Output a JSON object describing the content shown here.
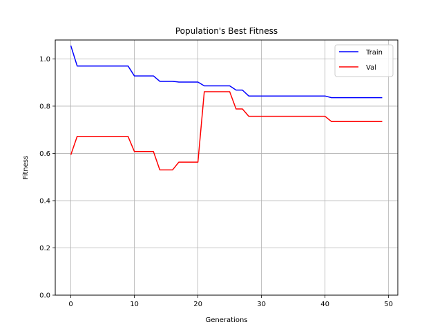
{
  "chart_data": {
    "type": "line",
    "title": "Population's Best Fitness",
    "xlabel": "Generations",
    "ylabel": "Fitness",
    "xlim": [
      -2.45,
      51.45
    ],
    "ylim": [
      0.0,
      1.08
    ],
    "xticks": [
      0,
      10,
      20,
      30,
      40,
      50
    ],
    "yticks": [
      0.0,
      0.2,
      0.4,
      0.6,
      0.8,
      1.0
    ],
    "xtick_labels": [
      "0",
      "10",
      "20",
      "30",
      "40",
      "50"
    ],
    "ytick_labels": [
      "0.0",
      "0.2",
      "0.4",
      "0.6",
      "0.8",
      "1.0"
    ],
    "grid": true,
    "legend_position": "top-right",
    "x": [
      0,
      1,
      2,
      3,
      4,
      5,
      6,
      7,
      8,
      9,
      10,
      11,
      12,
      13,
      14,
      15,
      16,
      17,
      18,
      19,
      20,
      21,
      22,
      23,
      24,
      25,
      26,
      27,
      28,
      29,
      30,
      31,
      32,
      33,
      34,
      35,
      36,
      37,
      38,
      39,
      40,
      41,
      42,
      43,
      44,
      45,
      46,
      47,
      48,
      49
    ],
    "series": [
      {
        "name": "Train",
        "color": "#0000ff",
        "values": [
          1.056,
          0.97,
          0.97,
          0.97,
          0.97,
          0.97,
          0.97,
          0.97,
          0.97,
          0.97,
          0.928,
          0.928,
          0.928,
          0.928,
          0.905,
          0.905,
          0.905,
          0.902,
          0.902,
          0.902,
          0.902,
          0.886,
          0.886,
          0.886,
          0.886,
          0.886,
          0.868,
          0.868,
          0.843,
          0.843,
          0.843,
          0.843,
          0.843,
          0.843,
          0.843,
          0.843,
          0.843,
          0.843,
          0.843,
          0.843,
          0.843,
          0.836,
          0.836,
          0.836,
          0.836,
          0.836,
          0.836,
          0.836,
          0.836,
          0.836
        ]
      },
      {
        "name": "Val",
        "color": "#ff0000",
        "values": [
          0.594,
          0.672,
          0.672,
          0.672,
          0.672,
          0.672,
          0.672,
          0.672,
          0.672,
          0.672,
          0.608,
          0.608,
          0.608,
          0.608,
          0.53,
          0.53,
          0.53,
          0.563,
          0.563,
          0.563,
          0.563,
          0.861,
          0.861,
          0.861,
          0.861,
          0.861,
          0.788,
          0.788,
          0.757,
          0.757,
          0.757,
          0.757,
          0.757,
          0.757,
          0.757,
          0.757,
          0.757,
          0.757,
          0.757,
          0.757,
          0.757,
          0.735,
          0.735,
          0.735,
          0.735,
          0.735,
          0.735,
          0.735,
          0.735,
          0.735
        ]
      }
    ]
  }
}
